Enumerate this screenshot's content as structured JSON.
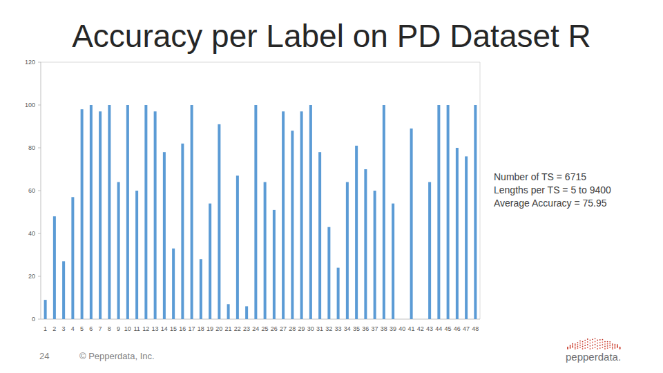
{
  "chart_data": {
    "type": "bar",
    "title": "Accuracy per Label on PD Dataset R",
    "categories": [
      1,
      2,
      3,
      4,
      5,
      6,
      7,
      8,
      9,
      10,
      11,
      12,
      13,
      14,
      15,
      16,
      17,
      18,
      19,
      20,
      21,
      22,
      23,
      24,
      25,
      26,
      27,
      28,
      29,
      30,
      31,
      32,
      33,
      34,
      35,
      36,
      37,
      38,
      39,
      40,
      41,
      42,
      43,
      44,
      45,
      46,
      47,
      48
    ],
    "values": [
      9,
      48,
      27,
      57,
      98,
      100,
      97,
      100,
      64,
      100,
      60,
      100,
      97,
      78,
      33,
      82,
      100,
      28,
      54,
      91,
      7,
      67,
      6,
      100,
      64,
      51,
      97,
      88,
      97,
      100,
      78,
      43,
      24,
      64,
      81,
      70,
      60,
      100,
      54,
      0,
      89,
      0,
      64,
      100,
      100,
      80,
      76,
      100
    ],
    "color": "#5b9bd5",
    "ylim": [
      0,
      120
    ],
    "yticks": [
      0,
      20,
      40,
      60,
      80,
      100,
      120
    ],
    "grid": false,
    "annotations": [
      "Number of TS = 6715",
      "Lengths per TS = 5 to 9400",
      "Average Accuracy = 75.95"
    ]
  },
  "footer": {
    "page": "24",
    "copyright": "© Pepperdata, Inc.",
    "logo": "pepperdata."
  }
}
